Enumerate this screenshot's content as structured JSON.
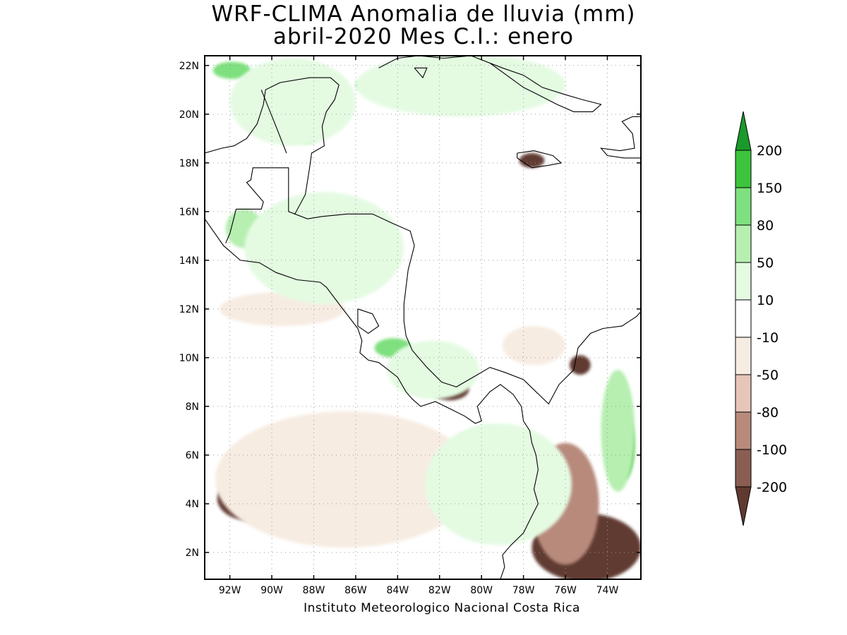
{
  "title_line1": "WRF-CLIMA Anomalia de lluvia (mm)",
  "title_line2": "abril-2020 Mes C.I.: enero",
  "credit": "Instituto Meteorologico Nacional Costa Rica",
  "map": {
    "lon_range": [
      -93.2,
      -72.4
    ],
    "lat_range": [
      0.9,
      22.4
    ],
    "lat_ticks": [
      {
        "value": 2,
        "label": "2N"
      },
      {
        "value": 4,
        "label": "4N"
      },
      {
        "value": 6,
        "label": "6N"
      },
      {
        "value": 8,
        "label": "8N"
      },
      {
        "value": 10,
        "label": "10N"
      },
      {
        "value": 12,
        "label": "12N"
      },
      {
        "value": 14,
        "label": "14N"
      },
      {
        "value": 16,
        "label": "16N"
      },
      {
        "value": 18,
        "label": "18N"
      },
      {
        "value": 20,
        "label": "20N"
      },
      {
        "value": 22,
        "label": "22N"
      }
    ],
    "lon_ticks": [
      {
        "value": -92,
        "label": "92W"
      },
      {
        "value": -90,
        "label": "90W"
      },
      {
        "value": -88,
        "label": "88W"
      },
      {
        "value": -86,
        "label": "86W"
      },
      {
        "value": -84,
        "label": "84W"
      },
      {
        "value": -82,
        "label": "82W"
      },
      {
        "value": -80,
        "label": "80W"
      },
      {
        "value": -78,
        "label": "78W"
      },
      {
        "value": -76,
        "label": "76W"
      },
      {
        "value": -74,
        "label": "74W"
      }
    ]
  },
  "legend": {
    "bins": [
      {
        "color": "#1a9a2a"
      },
      {
        "color": "#3cc43c"
      },
      {
        "color": "#7ee07e"
      },
      {
        "color": "#b6efb0"
      },
      {
        "color": "#e4fbe2"
      },
      {
        "color": "#ffffff"
      },
      {
        "color": "#f7ece2"
      },
      {
        "color": "#e6c6b8"
      },
      {
        "color": "#b88a7c"
      },
      {
        "color": "#8a5e52"
      },
      {
        "color": "#603a30"
      }
    ],
    "labels": [
      "200",
      "150",
      "80",
      "50",
      "10",
      "-10",
      "-50",
      "-80",
      "-100",
      "-200"
    ]
  },
  "regions": [
    {
      "category": "strong-dry",
      "color": "#603a30",
      "lon": -88.0,
      "lat": 4.5,
      "rx": 3.2,
      "ry": 1.2
    },
    {
      "category": "strong-dry",
      "color": "#603a30",
      "lon": -85.3,
      "lat": 5.5,
      "rx": 2.2,
      "ry": 1.3
    },
    {
      "category": "strong-dry",
      "color": "#603a30",
      "lon": -91.0,
      "lat": 4.2,
      "rx": 1.6,
      "ry": 0.9
    },
    {
      "category": "strong-dry",
      "color": "#603a30",
      "lon": -75.0,
      "lat": 2.2,
      "rx": 2.6,
      "ry": 1.4
    },
    {
      "category": "strong-dry",
      "color": "#603a30",
      "lon": -81.5,
      "lat": 8.7,
      "rx": 0.9,
      "ry": 0.45
    },
    {
      "category": "strong-dry",
      "color": "#603a30",
      "lon": -77.6,
      "lat": 18.1,
      "rx": 0.6,
      "ry": 0.3
    },
    {
      "category": "strong-dry",
      "color": "#603a30",
      "lon": -84.7,
      "lat": 14.3,
      "rx": 0.6,
      "ry": 0.35
    },
    {
      "category": "strong-dry",
      "color": "#603a30",
      "lon": -75.3,
      "lat": 9.7,
      "rx": 0.5,
      "ry": 0.4
    },
    {
      "category": "dry",
      "color": "#b88a7c",
      "lon": -86.5,
      "lat": 4.7,
      "rx": 5.2,
      "ry": 2.1
    },
    {
      "category": "dry",
      "color": "#b88a7c",
      "lon": -76.0,
      "lat": 4.0,
      "rx": 1.6,
      "ry": 2.5
    },
    {
      "category": "dry",
      "color": "#b88a7c",
      "lon": -88.8,
      "lat": 14.3,
      "rx": 0.8,
      "ry": 0.4
    },
    {
      "category": "light-dry",
      "color": "#f7ece2",
      "lon": -89.5,
      "lat": 12.0,
      "rx": 3.0,
      "ry": 0.7
    },
    {
      "category": "light-dry",
      "color": "#f7ece2",
      "lon": -77.5,
      "lat": 10.5,
      "rx": 1.5,
      "ry": 0.8
    },
    {
      "category": "light-dry",
      "color": "#f7ece2",
      "lon": -86.5,
      "lat": 5.0,
      "rx": 6.2,
      "ry": 2.8
    },
    {
      "category": "strong-wet",
      "color": "#3cc43c",
      "lon": -78.9,
      "lat": 5.6,
      "rx": 1.1,
      "ry": 0.9
    },
    {
      "category": "strong-wet",
      "color": "#3cc43c",
      "lon": -73.2,
      "lat": 6.4,
      "rx": 0.5,
      "ry": 1.4
    },
    {
      "category": "strong-wet",
      "color": "#3cc43c",
      "lon": -76.5,
      "lat": 5.0,
      "rx": 0.3,
      "ry": 1.0
    },
    {
      "category": "wet",
      "color": "#7ee07e",
      "lon": -79.5,
      "lat": 5.0,
      "rx": 2.0,
      "ry": 1.6
    },
    {
      "category": "wet",
      "color": "#7ee07e",
      "lon": -84.2,
      "lat": 10.4,
      "rx": 0.9,
      "ry": 0.4
    },
    {
      "category": "wet",
      "color": "#7ee07e",
      "lon": -91.9,
      "lat": 21.8,
      "rx": 0.9,
      "ry": 0.35
    },
    {
      "category": "wet",
      "color": "#7ee07e",
      "lon": -88.3,
      "lat": 19.3,
      "rx": 0.6,
      "ry": 0.5
    },
    {
      "category": "wet",
      "color": "#7ee07e",
      "lon": -85.5,
      "lat": 21.2,
      "rx": 0.5,
      "ry": 0.2
    },
    {
      "category": "light-wet",
      "color": "#b6efb0",
      "lon": -88.5,
      "lat": 15.2,
      "rx": 2.5,
      "ry": 1.0
    },
    {
      "category": "light-wet",
      "color": "#b6efb0",
      "lon": -91.3,
      "lat": 15.3,
      "rx": 0.9,
      "ry": 0.8
    },
    {
      "category": "light-wet",
      "color": "#b6efb0",
      "lon": -86.2,
      "lat": 13.2,
      "rx": 0.9,
      "ry": 0.6
    },
    {
      "category": "light-wet",
      "color": "#b6efb0",
      "lon": -79.5,
      "lat": 5.2,
      "rx": 2.6,
      "ry": 2.0
    },
    {
      "category": "light-wet",
      "color": "#b6efb0",
      "lon": -73.5,
      "lat": 7.0,
      "rx": 0.8,
      "ry": 2.5
    },
    {
      "category": "faint-wet",
      "color": "#e4fbe2",
      "lon": -89.0,
      "lat": 20.5,
      "rx": 3.0,
      "ry": 1.8
    },
    {
      "category": "faint-wet",
      "color": "#e4fbe2",
      "lon": -81.0,
      "lat": 21.2,
      "rx": 5.0,
      "ry": 1.3
    },
    {
      "category": "faint-wet",
      "color": "#e4fbe2",
      "lon": -87.5,
      "lat": 14.5,
      "rx": 3.8,
      "ry": 2.3
    },
    {
      "category": "faint-wet",
      "color": "#e4fbe2",
      "lon": -82.3,
      "lat": 9.5,
      "rx": 2.2,
      "ry": 1.2
    },
    {
      "category": "faint-wet",
      "color": "#e4fbe2",
      "lon": -79.2,
      "lat": 4.8,
      "rx": 3.5,
      "ry": 2.5
    }
  ],
  "coast_paths": [
    {
      "name": "yucatan-gulf-coast",
      "points": [
        [
          -93.2,
          18.4
        ],
        [
          -92.4,
          18.6
        ],
        [
          -91.8,
          18.7
        ],
        [
          -91.2,
          19.0
        ],
        [
          -90.7,
          19.6
        ],
        [
          -90.4,
          20.4
        ],
        [
          -90.3,
          21.0
        ],
        [
          -89.6,
          21.3
        ],
        [
          -88.2,
          21.5
        ],
        [
          -87.2,
          21.5
        ],
        [
          -86.8,
          21.2
        ],
        [
          -87.0,
          20.6
        ],
        [
          -87.4,
          20.1
        ],
        [
          -87.6,
          19.5
        ],
        [
          -87.5,
          18.7
        ],
        [
          -88.1,
          18.4
        ],
        [
          -88.2,
          17.8
        ],
        [
          -88.4,
          16.7
        ],
        [
          -88.9,
          15.9
        ],
        [
          -88.3,
          15.7
        ],
        [
          -87.6,
          15.8
        ],
        [
          -86.4,
          15.9
        ],
        [
          -85.2,
          15.9
        ],
        [
          -84.2,
          15.5
        ],
        [
          -83.4,
          15.2
        ],
        [
          -83.2,
          14.6
        ],
        [
          -83.5,
          13.6
        ],
        [
          -83.7,
          12.2
        ],
        [
          -83.7,
          11.5
        ],
        [
          -83.6,
          10.9
        ],
        [
          -83.3,
          10.3
        ],
        [
          -82.6,
          9.6
        ],
        [
          -81.9,
          9.0
        ],
        [
          -81.2,
          8.8
        ],
        [
          -80.4,
          9.2
        ],
        [
          -79.6,
          9.6
        ],
        [
          -78.9,
          9.4
        ],
        [
          -78.0,
          9.1
        ],
        [
          -77.4,
          8.6
        ],
        [
          -76.8,
          8.1
        ],
        [
          -76.3,
          8.9
        ],
        [
          -75.6,
          9.5
        ],
        [
          -75.4,
          10.4
        ],
        [
          -74.8,
          11.0
        ],
        [
          -74.2,
          11.2
        ],
        [
          -73.3,
          11.3
        ],
        [
          -72.6,
          11.7
        ],
        [
          -72.4,
          11.9
        ]
      ]
    },
    {
      "name": "pacific-coast",
      "points": [
        [
          -93.2,
          15.7
        ],
        [
          -92.3,
          14.6
        ],
        [
          -91.5,
          14.0
        ],
        [
          -90.6,
          13.9
        ],
        [
          -89.8,
          13.5
        ],
        [
          -88.8,
          13.2
        ],
        [
          -87.7,
          13.1
        ],
        [
          -87.4,
          12.9
        ],
        [
          -86.7,
          12.1
        ],
        [
          -85.9,
          11.2
        ],
        [
          -85.7,
          10.7
        ],
        [
          -85.8,
          10.2
        ],
        [
          -85.4,
          9.9
        ],
        [
          -84.9,
          9.8
        ],
        [
          -84.6,
          9.6
        ],
        [
          -84.0,
          9.2
        ],
        [
          -83.6,
          8.6
        ],
        [
          -83.3,
          8.3
        ],
        [
          -82.9,
          8.0
        ],
        [
          -82.2,
          8.2
        ],
        [
          -81.5,
          7.9
        ],
        [
          -80.8,
          7.6
        ],
        [
          -80.3,
          7.3
        ],
        [
          -80.0,
          7.4
        ],
        [
          -80.2,
          8.0
        ],
        [
          -79.6,
          8.6
        ],
        [
          -79.1,
          8.9
        ],
        [
          -78.5,
          8.5
        ],
        [
          -78.1,
          8.0
        ],
        [
          -78.0,
          7.4
        ],
        [
          -77.7,
          7.0
        ],
        [
          -77.6,
          6.5
        ],
        [
          -77.4,
          6.0
        ],
        [
          -77.3,
          5.4
        ],
        [
          -77.5,
          4.6
        ],
        [
          -77.3,
          4.0
        ],
        [
          -77.6,
          3.5
        ],
        [
          -78.0,
          2.8
        ],
        [
          -78.6,
          2.3
        ],
        [
          -79.0,
          1.9
        ],
        [
          -78.9,
          1.4
        ],
        [
          -79.1,
          0.9
        ]
      ]
    },
    {
      "name": "lake-nicaragua",
      "points": [
        [
          -85.9,
          12.0
        ],
        [
          -85.2,
          11.8
        ],
        [
          -84.9,
          11.3
        ],
        [
          -85.4,
          11.0
        ],
        [
          -85.9,
          11.3
        ],
        [
          -85.9,
          12.0
        ]
      ]
    },
    {
      "name": "guatemala-border",
      "points": [
        [
          -92.2,
          14.7
        ],
        [
          -92.0,
          15.1
        ],
        [
          -91.7,
          16.1
        ],
        [
          -90.5,
          16.1
        ],
        [
          -90.4,
          16.4
        ],
        [
          -91.2,
          17.2
        ],
        [
          -91.0,
          17.3
        ],
        [
          -90.9,
          17.8
        ],
        [
          -89.2,
          17.8
        ],
        [
          -89.2,
          16.0
        ],
        [
          -88.9,
          15.9
        ]
      ]
    },
    {
      "name": "cuba",
      "points": [
        [
          -84.9,
          21.9
        ],
        [
          -84.0,
          22.3
        ],
        [
          -83.0,
          22.4
        ],
        [
          -81.8,
          22.3
        ],
        [
          -80.5,
          22.4
        ],
        [
          -79.6,
          22.1
        ],
        [
          -78.8,
          21.6
        ],
        [
          -78.0,
          21.1
        ],
        [
          -77.3,
          20.8
        ],
        [
          -76.4,
          20.4
        ],
        [
          -75.6,
          20.1
        ],
        [
          -74.7,
          20.1
        ],
        [
          -74.3,
          20.4
        ],
        [
          -75.2,
          20.6
        ],
        [
          -76.0,
          20.8
        ],
        [
          -77.1,
          21.1
        ],
        [
          -78.0,
          21.6
        ],
        [
          -79.0,
          21.9
        ],
        [
          -80.2,
          22.3
        ]
      ]
    },
    {
      "name": "jamaica",
      "points": [
        [
          -78.3,
          18.4
        ],
        [
          -77.5,
          18.5
        ],
        [
          -76.6,
          18.3
        ],
        [
          -76.2,
          18.0
        ],
        [
          -76.8,
          17.9
        ],
        [
          -77.6,
          17.8
        ],
        [
          -78.3,
          18.2
        ],
        [
          -78.3,
          18.4
        ]
      ]
    },
    {
      "name": "hispaniola",
      "points": [
        [
          -72.4,
          19.9
        ],
        [
          -72.8,
          19.9
        ],
        [
          -73.3,
          19.7
        ],
        [
          -72.8,
          19.2
        ],
        [
          -72.7,
          18.6
        ],
        [
          -73.4,
          18.5
        ],
        [
          -74.3,
          18.6
        ],
        [
          -74.0,
          18.3
        ],
        [
          -73.2,
          18.2
        ],
        [
          -72.4,
          18.2
        ]
      ]
    },
    {
      "name": "yucatan-interior-1",
      "points": [
        [
          -90.5,
          21.0
        ],
        [
          -89.8,
          19.5
        ],
        [
          -89.3,
          18.4
        ]
      ]
    },
    {
      "name": "isla-juventud",
      "points": [
        [
          -83.2,
          21.9
        ],
        [
          -82.6,
          21.9
        ],
        [
          -82.8,
          21.5
        ],
        [
          -83.2,
          21.9
        ]
      ]
    }
  ]
}
